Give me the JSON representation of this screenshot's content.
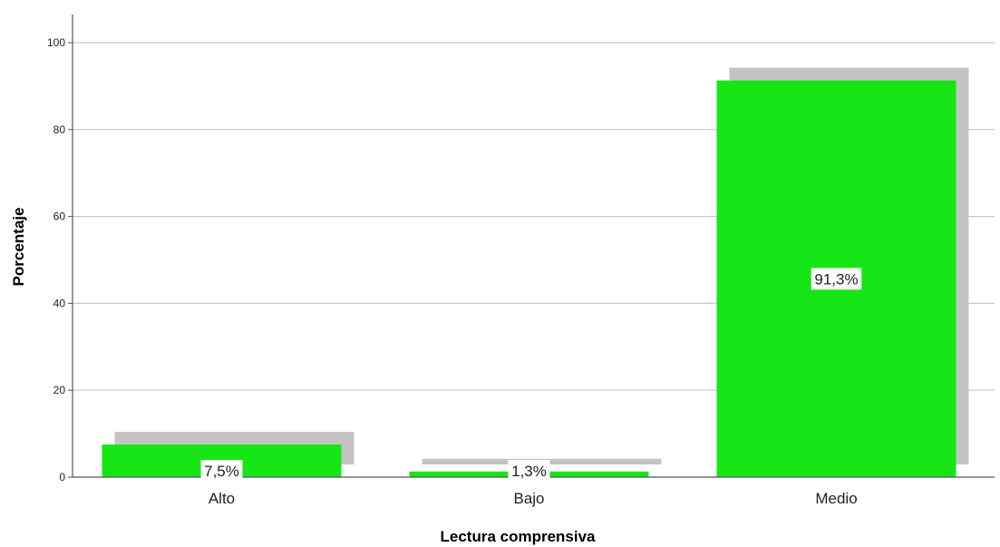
{
  "chart_data": {
    "type": "bar",
    "categories": [
      "Alto",
      "Bajo",
      "Medio"
    ],
    "values": [
      7.5,
      1.3,
      91.3
    ],
    "data_labels": [
      "7,5%",
      "1,3%",
      "91,3%"
    ],
    "xlabel": "Lectura comprensiva",
    "ylabel": "Porcentaje",
    "ylim": [
      0,
      100
    ],
    "yticks": [
      0,
      20,
      40,
      60,
      80,
      100
    ],
    "grid": true,
    "bar_shadow": true
  },
  "colors": {
    "bar": "#16e616",
    "shadow": "#c4c4c4",
    "grid": "#c8c8c8",
    "axis": "#555555"
  }
}
